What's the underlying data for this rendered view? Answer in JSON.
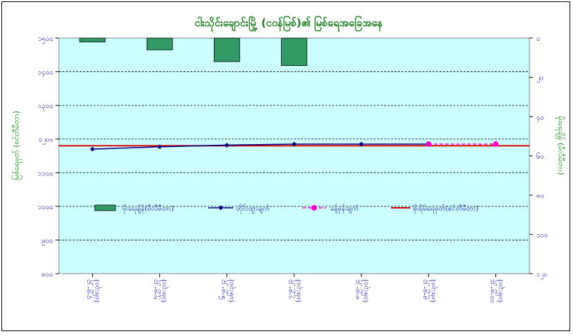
{
  "chart_data": {
    "type": "bar+line",
    "title": "ငါးသိုင်းချောင်းမြို့ (ငဝန်မြစ်)၏ မြစ်ရေအခြေအနေ",
    "ylabel_left": "မြစ်ရေမှတ် (စင်တီမီတာ)",
    "ylabel_right": "မိုးရေချိန် (မီလီမီတာ)",
    "left_axis": {
      "min": 800,
      "max": 1500,
      "ticks": [
        800,
        900,
        1000,
        1100,
        1200,
        1300,
        1400,
        1500
      ],
      "tick_labels": [
        "၈၀၀",
        "၉၀၀",
        "၁၀၀၀",
        "၁၁၀၀",
        "၁၂၀၀",
        "၁၃၀၀",
        "၁၄၀၀",
        "၁၅၀၀"
      ]
    },
    "right_axis": {
      "min": 0,
      "max": 120,
      "inverted": true,
      "ticks": [
        0,
        20,
        40,
        60,
        80,
        100,
        120
      ],
      "tick_labels": [
        "၀",
        "၂၀",
        "၄၀",
        "၆၀",
        "၈၀",
        "၁၀၀",
        "၁၂၀"
      ]
    },
    "categories": [
      "၄-၉-၂၃ (၀၆:၃၀)",
      "၅-၉-၂၃ (၀၆:၃၀)",
      "၆-၉-၂၃ (၀၆:၃၀)",
      "၇-၉-၂၃ (၀၆:၃၀)",
      "၈-၉-၂၃ (၀၆:၃၀)",
      "၉-၉-၂၃ (၀၆:၃၀)",
      "၁၀-၉-၂၃ (၀၆:၃၀)"
    ],
    "series": [
      {
        "name": "မိုးရေချိန်(မီလီမီတာ)",
        "type": "bar",
        "axis": "right",
        "color": "#339966",
        "values": [
          2,
          6,
          12,
          14,
          null,
          null,
          null
        ]
      },
      {
        "name": "တိုင်းထွာချက်",
        "type": "line",
        "axis": "left",
        "color": "#000080",
        "values": [
          1170,
          1177,
          1182,
          1185,
          1185,
          1185,
          null
        ]
      },
      {
        "name": "ခန့်မှန်းချက်",
        "type": "line-dashed",
        "axis": "left",
        "color": "#ff00cc",
        "values": [
          null,
          null,
          null,
          null,
          null,
          1185,
          1185
        ]
      },
      {
        "name": "စိုးရိမ်ရေမှတ်(စင်တီမီတာ)",
        "type": "hline",
        "axis": "left",
        "color": "#dd0000",
        "value": 1180
      }
    ],
    "grid": true,
    "legend_position": "center-left"
  },
  "colors": {
    "plot_bg": "#ccffff",
    "title": "#1a7a1a",
    "tick": "#1a1a9a"
  }
}
